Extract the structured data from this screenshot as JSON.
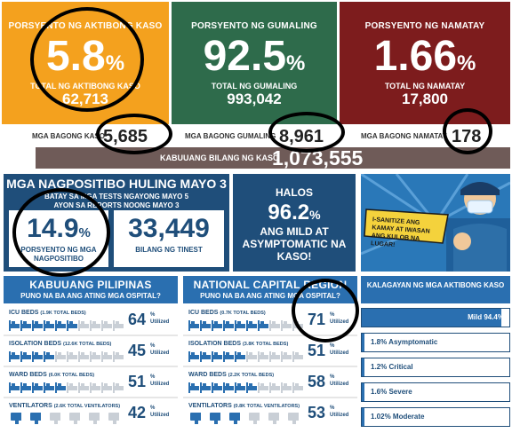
{
  "active": {
    "title": "PORSYENTO NG AKTIBONG KASO",
    "value": "5.8",
    "pct": "%",
    "sub": "TOTAL NG AKTIBONG KASO",
    "total": "62,713"
  },
  "recovered": {
    "title": "PORSYENTO NG GUMALING",
    "value": "92.5",
    "pct": "%",
    "sub": "TOTAL NG GUMALING",
    "total": "993,042"
  },
  "deaths": {
    "title": "PORSYENTO NG NAMATAY",
    "value": "1.66",
    "pct": "%",
    "sub": "TOTAL NG NAMATAY",
    "total": "17,800"
  },
  "new_cases": {
    "label": "MGA BAGONG KASO",
    "value": "5,685"
  },
  "new_recovered": {
    "label": "MGA BAGONG GUMALING",
    "value": "8,961"
  },
  "new_deaths": {
    "label": "MGA BAGONG NAMATAY",
    "value": "178"
  },
  "total_cases": {
    "label": "KABUUANG BILANG NG KASO",
    "value": "1,073,555"
  },
  "positivity": {
    "title": "MGA NAGPOSITIBO HULING MAYO 3",
    "sub1": "BATAY SA MGA TESTS NGAYONG MAYO 5",
    "sub2": "AYON SA REPORTS NOONG MAYO 3",
    "rate": "14.9",
    "pct": "%",
    "rate_label": "PORSYENTO NG MGA NAGPOSITIBO",
    "tested": "33,449",
    "tested_label": "BILANG NG TINEST"
  },
  "mild": {
    "line1": "HALOS",
    "value": "96.2",
    "pct": "%",
    "line2": "ANG MILD AT ASYMPTOMATIC NA KASO!"
  },
  "illustration": {
    "text": "I-SANITIZE ANG KAMAY AT IWASAN ANG KULOB NA LUGAR!"
  },
  "philippines": {
    "title": "KABUUANG PILIPINAS",
    "subtitle": "PUNO NA BA ANG ATING MGA OSPITAL?",
    "beds": [
      {
        "name": "ICU BEDS",
        "total": "(1.9K TOTAL BEDS)",
        "value": "64",
        "pct": "%",
        "util": "Utilized",
        "used": 6
      },
      {
        "name": "ISOLATION BEDS",
        "total": "(12.6K TOTAL BEDS)",
        "value": "45",
        "pct": "%",
        "util": "Utilized",
        "used": 4
      },
      {
        "name": "WARD BEDS",
        "total": "(6.0K TOTAL BEDS)",
        "value": "51",
        "pct": "%",
        "util": "Utilized",
        "used": 5
      },
      {
        "name": "VENTILATORS",
        "total": "(2.6K TOTAL VENTILATORS)",
        "value": "42",
        "pct": "%",
        "util": "Utilized",
        "used": 4
      }
    ]
  },
  "ncr": {
    "title": "NATIONAL CAPITAL REGION",
    "subtitle": "PUNO NA BA ANG ATING MGA OSPITAL?",
    "beds": [
      {
        "name": "ICU BEDS",
        "total": "(0.7K TOTAL BEDS)",
        "value": "71",
        "pct": "%",
        "util": "Utilized",
        "used": 7
      },
      {
        "name": "ISOLATION BEDS",
        "total": "(3.8K TOTAL BEDS)",
        "value": "51",
        "pct": "%",
        "util": "Utilized",
        "used": 5
      },
      {
        "name": "WARD BEDS",
        "total": "(2.2K TOTAL BEDS)",
        "value": "58",
        "pct": "%",
        "util": "Utilized",
        "used": 6
      },
      {
        "name": "VENTILATORS",
        "total": "(0.8K TOTAL VENTILATORS)",
        "value": "53",
        "pct": "%",
        "util": "Utilized",
        "used": 5
      }
    ]
  },
  "status": {
    "title": "KALAGAYAN NG MGA AKTIBONG KASO",
    "rows": [
      {
        "label": "Mild 94.4%",
        "value": 94.4
      },
      {
        "label": "1.8% Asymptomatic",
        "value": 1.8
      },
      {
        "label": "1.2% Critical",
        "value": 1.2
      },
      {
        "label": "1.6% Severe",
        "value": 1.6
      },
      {
        "label": "1.02% Moderate",
        "value": 1.02
      }
    ]
  }
}
